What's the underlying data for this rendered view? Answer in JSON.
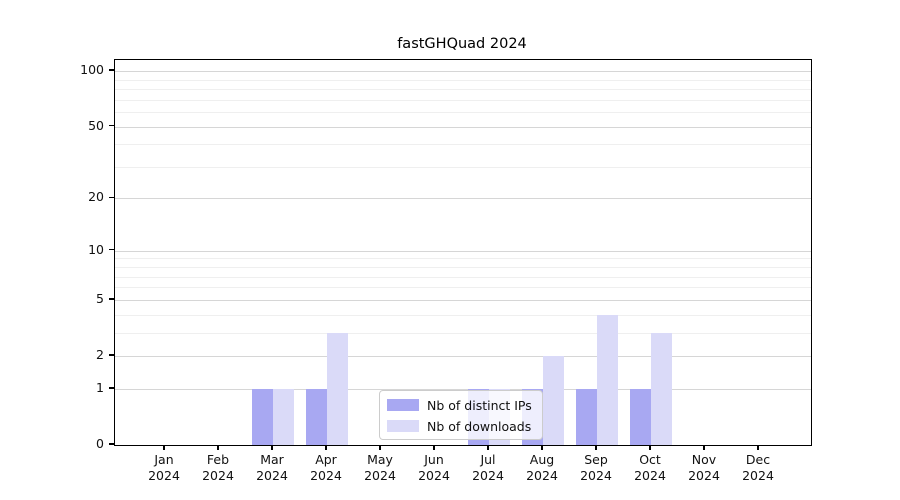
{
  "chart_data": {
    "type": "bar",
    "title": "fastGHQuad 2024",
    "categories": [
      "Jan",
      "Feb",
      "Mar",
      "Apr",
      "May",
      "Jun",
      "Jul",
      "Aug",
      "Sep",
      "Oct",
      "Nov",
      "Dec"
    ],
    "category_year": "2024",
    "series": [
      {
        "name": "Nb of distinct IPs",
        "color": "#a8a8f2",
        "values": [
          0,
          0,
          1,
          1,
          0,
          0,
          1,
          1,
          1,
          1,
          0,
          0
        ]
      },
      {
        "name": "Nb of downloads",
        "color": "#dadaf8",
        "values": [
          0,
          0,
          1,
          3,
          0,
          0,
          1,
          2,
          4,
          3,
          0,
          0
        ]
      }
    ],
    "xlabel": "",
    "ylabel": "",
    "yscale": "log1p",
    "ylim": [
      0,
      115
    ],
    "yticks": [
      0,
      1,
      2,
      5,
      10,
      20,
      50,
      100
    ],
    "minor_yticks": [
      3,
      4,
      6,
      7,
      8,
      9,
      30,
      40,
      60,
      70,
      80,
      90
    ],
    "grid": true,
    "legend_position": "lower center"
  }
}
